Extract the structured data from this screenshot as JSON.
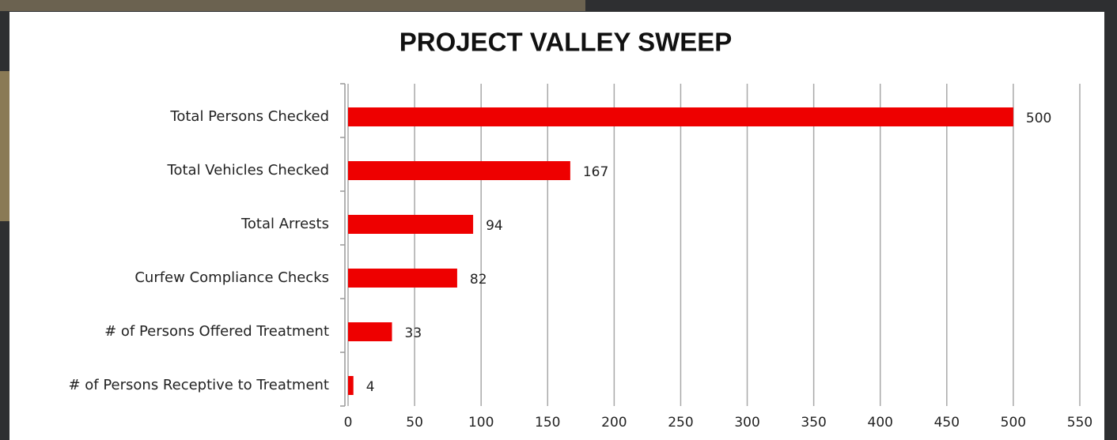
{
  "chart_data": {
    "type": "bar",
    "orientation": "horizontal",
    "title": "PROJECT VALLEY SWEEP",
    "categories": [
      "Total Persons Checked",
      "Total Vehicles Checked",
      "Total Arrests",
      "Curfew Compliance Checks",
      "# of Persons  Offered Treatment",
      "# of Persons Receptive to Treatment"
    ],
    "values": [
      500,
      167,
      94,
      82,
      33,
      4
    ],
    "color": "#ee0000",
    "xlim": [
      0,
      550
    ],
    "xticks": [
      0,
      50,
      100,
      150,
      200,
      250,
      300,
      350,
      400,
      450,
      500,
      550
    ],
    "grid": true
  }
}
